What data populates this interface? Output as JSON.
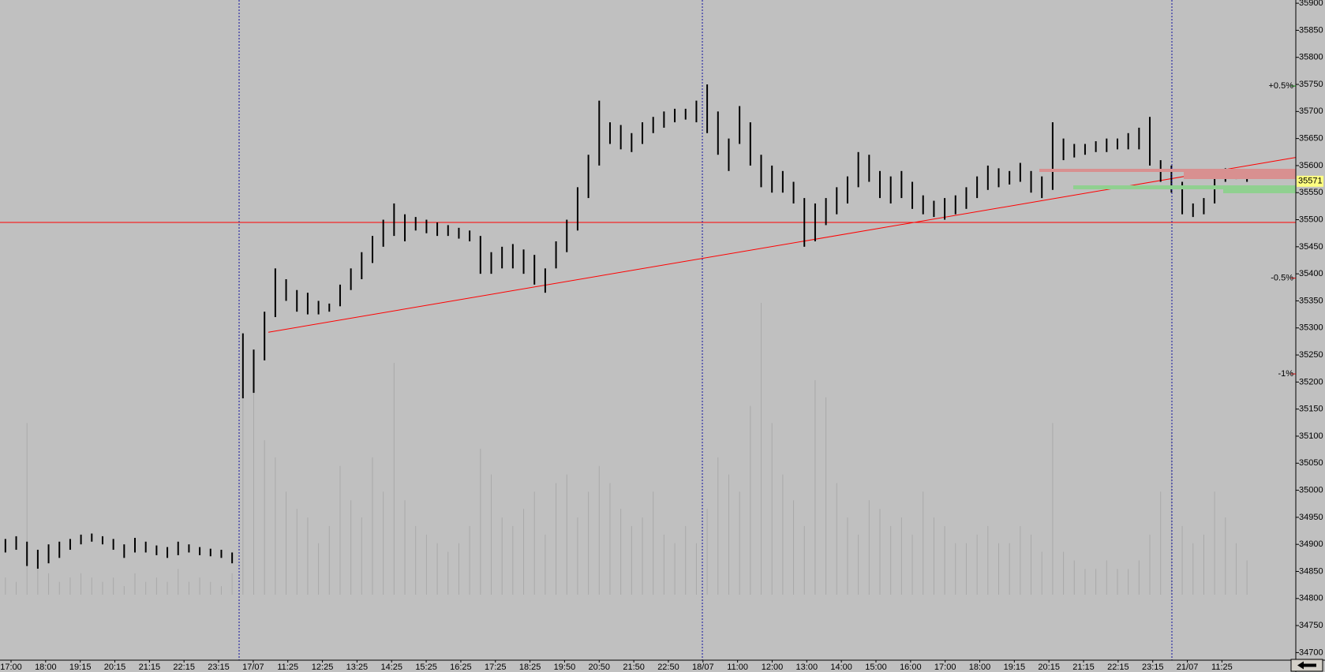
{
  "chart_data": {
    "type": "ohlc",
    "categories": [
      "17:00",
      "18:00",
      "19:15",
      "20:15",
      "21:15",
      "22:15",
      "23:15",
      "17/07",
      "11:25",
      "12:25",
      "13:25",
      "14:25",
      "15:25",
      "16:25",
      "17:25",
      "18:25",
      "19:50",
      "20:50",
      "21:50",
      "22:50",
      "18/07",
      "11:00",
      "12:00",
      "13:00",
      "14:00",
      "15:00",
      "16:00",
      "17:00",
      "18:00",
      "19:15",
      "20:15",
      "21:15",
      "22:15",
      "23:15",
      "21/07",
      "11:25"
    ],
    "color": "#000000",
    "high": [
      34910,
      34915,
      34905,
      34890,
      34900,
      34905,
      34910,
      34918,
      34920,
      34915,
      34910,
      34900,
      34912,
      34905,
      34898,
      34895,
      34905,
      34900,
      34895,
      34892,
      34890,
      34885,
      35290,
      35260,
      35330,
      35410,
      35390,
      35370,
      35365,
      35350,
      35345,
      35380,
      35410,
      35440,
      35470,
      35500,
      35530,
      35510,
      35505,
      35500,
      35495,
      35490,
      35485,
      35480,
      35470,
      35440,
      35450,
      35455,
      35445,
      35435,
      35410,
      35460,
      35500,
      35560,
      35620,
      35720,
      35680,
      35675,
      35660,
      35680,
      35690,
      35700,
      35705,
      35705,
      35720,
      35750,
      35700,
      35650,
      35710,
      35680,
      35620,
      35600,
      35590,
      35570,
      35540,
      35530,
      35540,
      35560,
      35580,
      35625,
      35620,
      35590,
      35580,
      35590,
      35570,
      35545,
      35535,
      35540,
      35545,
      35560,
      35580,
      35600,
      35595,
      35590,
      35605,
      35590,
      35580,
      35680,
      35650,
      35640,
      35640,
      35645,
      35650,
      35650,
      35660,
      35670,
      35690,
      35610,
      35600,
      35570,
      35530,
      35540,
      35580,
      35595,
      35590,
      35585
    ],
    "low": [
      34885,
      34890,
      34860,
      34855,
      34865,
      34875,
      34890,
      34900,
      34905,
      34900,
      34890,
      34875,
      34885,
      34885,
      34880,
      34875,
      34880,
      34885,
      34880,
      34878,
      34875,
      34865,
      35170,
      35180,
      35240,
      35320,
      35350,
      35330,
      35325,
      35325,
      35330,
      35340,
      35370,
      35390,
      35420,
      35450,
      35470,
      35460,
      35480,
      35475,
      35470,
      35470,
      35465,
      35460,
      35400,
      35400,
      35410,
      35410,
      35400,
      35380,
      35365,
      35410,
      35440,
      35480,
      35540,
      35600,
      35640,
      35630,
      35625,
      35640,
      35660,
      35670,
      35680,
      35685,
      35680,
      35660,
      35620,
      35590,
      35640,
      35600,
      35560,
      35550,
      35550,
      35530,
      35450,
      35460,
      35490,
      35510,
      35530,
      35560,
      35570,
      35540,
      35530,
      35540,
      35520,
      35510,
      35505,
      35500,
      35510,
      35520,
      35540,
      35555,
      35560,
      35565,
      35570,
      35550,
      35540,
      35555,
      35610,
      35615,
      35620,
      35625,
      35625,
      35630,
      35630,
      35630,
      35600,
      35570,
      35550,
      35510,
      35505,
      35510,
      35530,
      35570,
      35575,
      35570
    ],
    "volume": [
      20,
      15,
      200,
      30,
      25,
      15,
      20,
      25,
      20,
      15,
      20,
      10,
      25,
      15,
      20,
      15,
      30,
      15,
      20,
      15,
      10,
      25,
      280,
      260,
      180,
      160,
      120,
      100,
      90,
      60,
      80,
      150,
      110,
      90,
      160,
      120,
      270,
      110,
      80,
      70,
      60,
      50,
      60,
      80,
      170,
      140,
      90,
      80,
      100,
      120,
      70,
      130,
      140,
      90,
      120,
      150,
      130,
      100,
      80,
      90,
      120,
      70,
      60,
      80,
      60,
      100,
      160,
      140,
      120,
      220,
      340,
      200,
      140,
      110,
      80,
      250,
      230,
      130,
      90,
      70,
      110,
      100,
      80,
      90,
      70,
      120,
      90,
      80,
      60,
      60,
      70,
      80,
      60,
      60,
      80,
      70,
      50,
      200,
      50,
      40,
      30,
      30,
      40,
      30,
      30,
      40,
      70,
      120,
      190,
      80,
      60,
      70,
      120,
      90,
      60,
      40
    ],
    "volume_color": "#a9a9a9",
    "ylim": [
      34686,
      35906
    ],
    "yticks": [
      34700,
      34750,
      34800,
      34850,
      34900,
      34950,
      35000,
      35050,
      35100,
      35150,
      35200,
      35250,
      35300,
      35350,
      35400,
      35450,
      35500,
      35550,
      35600,
      35650,
      35700,
      35750,
      35800,
      35850,
      35900
    ],
    "levels": [
      {
        "value": 35747,
        "label": "+0.5%",
        "color": "#008000"
      },
      {
        "value": 35392,
        "label": "-0.5%",
        "color": "#d00000"
      },
      {
        "value": 35215,
        "label": "-1%",
        "color": "#d00000"
      }
    ],
    "last_price": 35571,
    "hline": {
      "value": 35495,
      "color": "#ff0000"
    },
    "trendline": {
      "start": 35292,
      "end": 35615,
      "color": "#ff0000"
    }
  }
}
